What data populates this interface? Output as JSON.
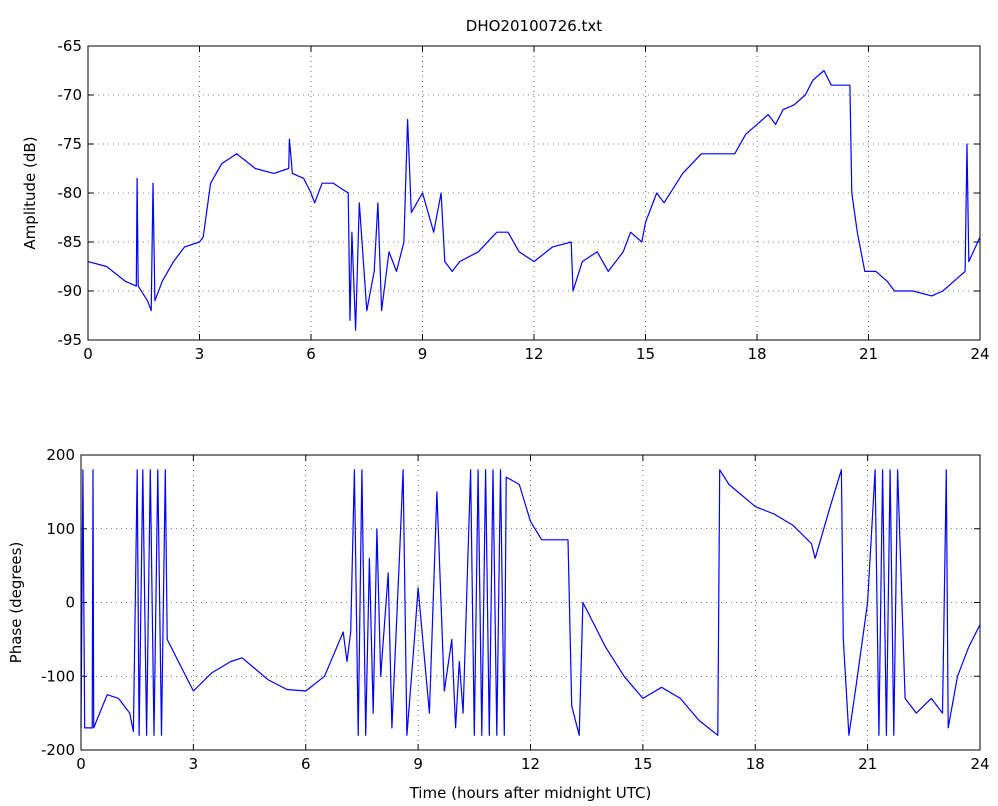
{
  "chart_data": [
    {
      "type": "line",
      "title": "DHO20100726.txt",
      "y_label": "Amplitude (dB)",
      "color": "#0000ff",
      "grid": true,
      "xlim": [
        0,
        24
      ],
      "xticks": [
        0,
        3,
        6,
        9,
        12,
        15,
        18,
        21,
        24
      ],
      "ylim": [
        -95,
        -65
      ],
      "yticks": [
        -95,
        -90,
        -85,
        -80,
        -75,
        -70,
        -65
      ],
      "x": [
        0,
        0.5,
        1,
        1.3,
        1.32,
        1.35,
        1.6,
        1.7,
        1.75,
        1.8,
        2,
        2.3,
        2.6,
        3,
        3.1,
        3.3,
        3.6,
        4,
        4.5,
        5,
        5.4,
        5.42,
        5.5,
        5.8,
        6,
        6.1,
        6.3,
        6.6,
        7,
        7.05,
        7.1,
        7.2,
        7.3,
        7.5,
        7.7,
        7.8,
        7.9,
        8.1,
        8.3,
        8.5,
        8.6,
        8.7,
        9,
        9.3,
        9.5,
        9.6,
        9.8,
        10,
        10.5,
        11,
        11.3,
        11.6,
        12,
        12.5,
        13,
        13.05,
        13.3,
        13.7,
        14,
        14.4,
        14.6,
        14.9,
        15,
        15.3,
        15.5,
        16,
        16.5,
        17,
        17.4,
        17.7,
        18,
        18.3,
        18.5,
        18.7,
        19,
        19.3,
        19.5,
        19.8,
        20,
        20.3,
        20.5,
        20.55,
        20.7,
        20.9,
        21.2,
        21.5,
        21.7,
        22.2,
        22.7,
        23,
        23.3,
        23.6,
        23.65,
        23.7,
        24
      ],
      "values": [
        -87,
        -87.5,
        -89,
        -89.5,
        -78.5,
        -89.5,
        -91,
        -92,
        -79,
        -91,
        -89,
        -87,
        -85.5,
        -85,
        -84.5,
        -79,
        -77,
        -76,
        -77.5,
        -78,
        -77.5,
        -74.5,
        -78,
        -78.5,
        -80,
        -81,
        -79,
        -79,
        -80,
        -93,
        -84,
        -94,
        -81,
        -92,
        -88,
        -81,
        -92,
        -86,
        -88,
        -85,
        -72.5,
        -82,
        -80,
        -84,
        -80,
        -87,
        -88,
        -87,
        -86,
        -84,
        -84,
        -86,
        -87,
        -85.5,
        -85,
        -90,
        -87,
        -86,
        -88,
        -86,
        -84,
        -85,
        -83,
        -80,
        -81,
        -78,
        -76,
        -76,
        -76,
        -74,
        -73,
        -72,
        -73,
        -71.5,
        -71,
        -70,
        -68.5,
        -67.5,
        -69,
        -69,
        -69,
        -80,
        -84,
        -88,
        -88,
        -89,
        -90,
        -90,
        -90.5,
        -90,
        -89,
        -88,
        -75,
        -87,
        -84.5
      ]
    },
    {
      "type": "line",
      "x_label": "Time (hours after midnight UTC)",
      "y_label": "Phase (degrees)",
      "color": "#0000ff",
      "grid": true,
      "xlim": [
        0,
        24
      ],
      "xticks": [
        0,
        3,
        6,
        9,
        12,
        15,
        18,
        21,
        24
      ],
      "ylim": [
        -200,
        200
      ],
      "yticks": [
        -200,
        -100,
        0,
        100,
        200
      ],
      "x": [
        0,
        0.05,
        0.1,
        0.3,
        0.32,
        0.34,
        0.5,
        0.7,
        1,
        1.3,
        1.4,
        1.5,
        1.55,
        1.65,
        1.75,
        1.85,
        1.95,
        2.05,
        2.15,
        2.25,
        2.3,
        2.6,
        3,
        3.5,
        4,
        4.3,
        5,
        5.5,
        6,
        6.5,
        7,
        7.1,
        7.2,
        7.3,
        7.4,
        7.5,
        7.6,
        7.7,
        7.8,
        7.9,
        8,
        8.2,
        8.3,
        8.5,
        8.6,
        8.7,
        8.9,
        9,
        9.3,
        9.5,
        9.7,
        9.9,
        10,
        10.1,
        10.2,
        10.4,
        10.5,
        10.6,
        10.7,
        10.8,
        10.9,
        11,
        11.1,
        11.2,
        11.3,
        11.35,
        11.7,
        12,
        12.3,
        12.7,
        13,
        13.1,
        13.3,
        13.4,
        13.7,
        14,
        14.5,
        15,
        15.5,
        16,
        16.5,
        17,
        17.05,
        17.3,
        18,
        18.5,
        19,
        19.5,
        19.6,
        20,
        20.3,
        20.35,
        20.5,
        20.7,
        21,
        21.2,
        21.3,
        21.4,
        21.5,
        21.6,
        21.7,
        21.8,
        22,
        22.3,
        22.7,
        23,
        23.1,
        23.15,
        23.4,
        23.7,
        24
      ],
      "values": [
        -170,
        180,
        -170,
        -170,
        180,
        -170,
        -150,
        -125,
        -130,
        -150,
        -175,
        180,
        -180,
        180,
        -180,
        180,
        -180,
        180,
        -180,
        180,
        -50,
        -80,
        -120,
        -95,
        -80,
        -75,
        -105,
        -118,
        -120,
        -100,
        -40,
        -80,
        -40,
        180,
        -180,
        180,
        -180,
        60,
        -150,
        100,
        -100,
        40,
        -170,
        60,
        180,
        -180,
        -50,
        20,
        -150,
        150,
        -120,
        -50,
        -170,
        -80,
        -150,
        180,
        -180,
        180,
        -180,
        180,
        -180,
        180,
        -180,
        180,
        -180,
        170,
        160,
        110,
        85,
        85,
        85,
        -140,
        -180,
        0,
        -30,
        -60,
        -100,
        -130,
        -115,
        -130,
        -160,
        -180,
        180,
        160,
        130,
        120,
        105,
        80,
        60,
        130,
        180,
        -50,
        -180,
        -110,
        0,
        180,
        -180,
        180,
        -180,
        180,
        -180,
        180,
        -130,
        -150,
        -130,
        -150,
        180,
        -170,
        -100,
        -60,
        -30
      ]
    }
  ]
}
